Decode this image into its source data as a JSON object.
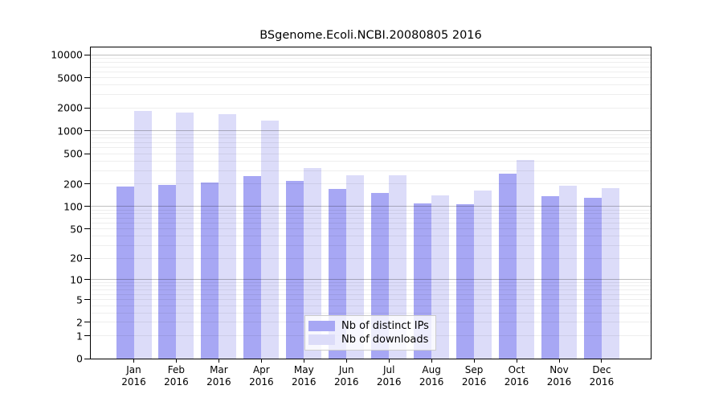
{
  "chart_data": {
    "type": "bar",
    "title": "BSgenome.Ecoli.NCBI.20080805 2016",
    "categories": [
      "Jan",
      "Feb",
      "Mar",
      "Apr",
      "May",
      "Jun",
      "Jul",
      "Aug",
      "Sep",
      "Oct",
      "Nov",
      "Dec"
    ],
    "category_year": "2016",
    "series": [
      {
        "name": "Nb of distinct IPs",
        "color": "#a7a7f4",
        "values": [
          183,
          194,
          206,
          251,
          219,
          171,
          151,
          111,
          108,
          273,
          137,
          130
        ]
      },
      {
        "name": "Nb of downloads",
        "color": "#dcdcf9",
        "values": [
          1850,
          1740,
          1670,
          1360,
          324,
          262,
          257,
          141,
          164,
          415,
          190,
          176
        ]
      }
    ],
    "yscale": "log10(value+1)",
    "yticks": [
      0,
      1,
      2,
      5,
      10,
      20,
      50,
      100,
      200,
      500,
      1000,
      2000,
      5000,
      10000
    ],
    "ylim": [
      0,
      12000
    ],
    "grid": "horizontal",
    "grid_major_at": [
      10,
      100,
      1000,
      10000
    ],
    "legend_position": "inside-bottom-center",
    "colors": {
      "frame": "#000000",
      "grid_minor": "rgba(0,0,0,0.065)",
      "grid_major": "rgba(0,0,0,0.25)",
      "legend_border": "#cccccc"
    }
  }
}
